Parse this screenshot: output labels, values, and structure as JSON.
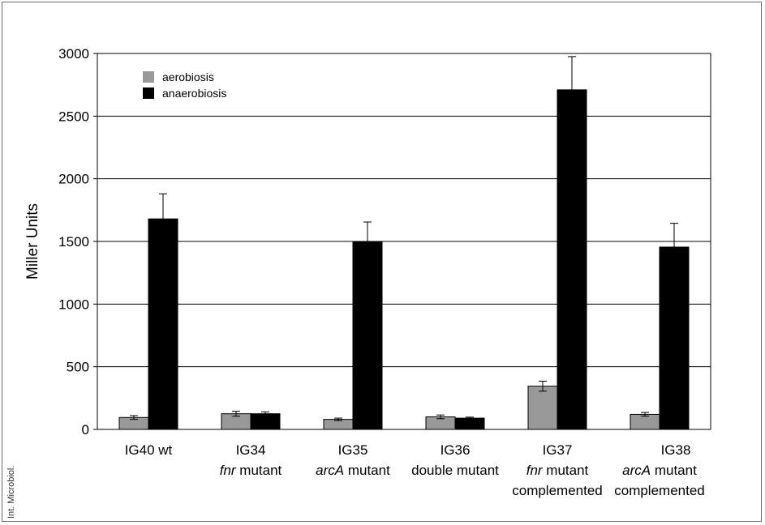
{
  "chart_data": {
    "type": "bar",
    "ylabel": "Miller Units",
    "ylim": [
      0,
      3000
    ],
    "yticks": [
      0,
      500,
      1000,
      1500,
      2000,
      2500,
      3000
    ],
    "grid": true,
    "legend_position": "top-left",
    "categories": [
      {
        "lines": [
          {
            "text": "IG40 wt",
            "italic": false
          }
        ]
      },
      {
        "lines": [
          {
            "text": "IG34",
            "italic": false
          }
        ],
        "line2": [
          {
            "text": "fnr",
            "italic": true
          },
          {
            "text": " mutant",
            "italic": false
          }
        ]
      },
      {
        "lines": [
          {
            "text": "IG35",
            "italic": false
          }
        ],
        "line2": [
          {
            "text": "arcA",
            "italic": true
          },
          {
            "text": " mutant",
            "italic": false
          }
        ]
      },
      {
        "lines": [
          {
            "text": "IG36",
            "italic": false
          }
        ],
        "line2": [
          {
            "text": "double mutant",
            "italic": false
          }
        ]
      },
      {
        "lines": [
          {
            "text": "IG37",
            "italic": false
          }
        ],
        "line2": [
          {
            "text": "fnr",
            "italic": true
          },
          {
            "text": " mutant",
            "italic": false
          }
        ],
        "line3": "complemented"
      },
      {
        "lines": [
          {
            "text": "IG38",
            "italic": false
          }
        ],
        "line2": [
          {
            "text": "arcA",
            "italic": true
          },
          {
            "text": " mutant",
            "italic": false
          }
        ],
        "line3": "complemented"
      }
    ],
    "series": [
      {
        "name": "aerobiosis",
        "color": "#999999",
        "values": [
          95,
          125,
          80,
          100,
          345,
          120
        ],
        "errors": [
          15,
          20,
          10,
          15,
          40,
          15
        ]
      },
      {
        "name": "anaerobiosis",
        "color": "#000000",
        "values": [
          1680,
          125,
          1500,
          90,
          2710,
          1455
        ],
        "errors": [
          200,
          15,
          155,
          8,
          265,
          190
        ]
      }
    ]
  },
  "credit": "Int. Microbiol."
}
